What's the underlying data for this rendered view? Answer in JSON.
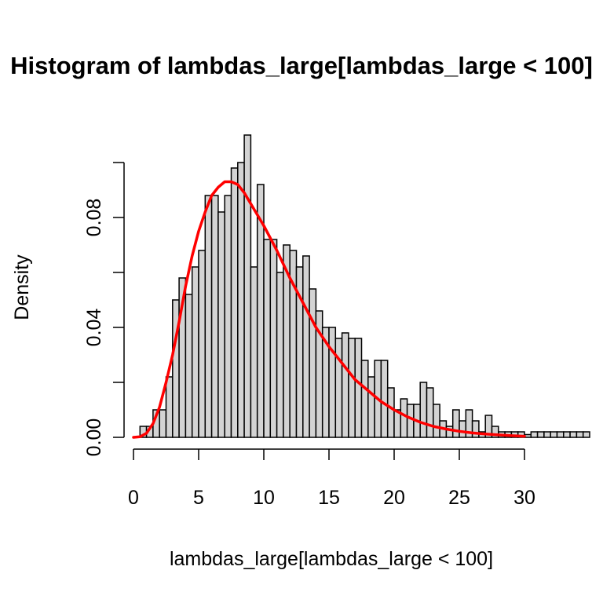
{
  "chart_data": {
    "type": "bar",
    "title": "Histogram of lambdas_large[lambdas_large < 100]",
    "xlabel": "lambdas_large[lambdas_large < 100]",
    "ylabel": "Density",
    "xlim": [
      0,
      30
    ],
    "ylim": [
      0,
      0.1
    ],
    "x_ticks": [
      0,
      5,
      10,
      15,
      20,
      25,
      30
    ],
    "x_tick_labels": [
      "0",
      "5",
      "10",
      "15",
      "20",
      "25",
      "30"
    ],
    "y_ticks": [
      0,
      0.02,
      0.04,
      0.06,
      0.08,
      0.1
    ],
    "y_tick_labels": [
      "0.00",
      "",
      "0.04",
      "",
      "0.08",
      ""
    ],
    "bin_width": 0.5,
    "bin_start": 0,
    "bar_color": "#d3d3d3",
    "bar_border_color": "#000000",
    "values": [
      0,
      0.004,
      0.004,
      0.01,
      0.01,
      0.022,
      0.05,
      0.058,
      0.052,
      0.062,
      0.068,
      0.088,
      0.088,
      0.082,
      0.088,
      0.098,
      0.1,
      0.11,
      0.062,
      0.092,
      0.072,
      0.072,
      0.06,
      0.07,
      0.068,
      0.062,
      0.066,
      0.054,
      0.046,
      0.04,
      0.04,
      0.036,
      0.038,
      0.036,
      0.036,
      0.028,
      0.022,
      0.028,
      0.028,
      0.018,
      0.01,
      0.014,
      0.012,
      0.012,
      0.02,
      0.018,
      0.012,
      0.006,
      0.004,
      0.01,
      0.006,
      0.01,
      0.006,
      0.002,
      0.008,
      0.004,
      0.002,
      0.002,
      0.002,
      0.002,
      0.001,
      0.002,
      0.002,
      0.002,
      0.002,
      0.002,
      0.002,
      0.002,
      0.002,
      0.002
    ],
    "curve": {
      "color": "#ff0000",
      "x": [
        0,
        0.5,
        1,
        1.5,
        2,
        2.5,
        3,
        3.5,
        4,
        4.5,
        5,
        5.5,
        6,
        6.5,
        7,
        7.5,
        8,
        8.5,
        9,
        9.5,
        10,
        11,
        12,
        13,
        14,
        15,
        16,
        17,
        18,
        19,
        20,
        21,
        22,
        23,
        24,
        25,
        26,
        27,
        28,
        29,
        30
      ],
      "y": [
        0,
        0.0002,
        0.0015,
        0.005,
        0.011,
        0.02,
        0.03,
        0.042,
        0.055,
        0.066,
        0.075,
        0.082,
        0.088,
        0.091,
        0.093,
        0.093,
        0.092,
        0.089,
        0.085,
        0.081,
        0.077,
        0.068,
        0.058,
        0.049,
        0.04,
        0.033,
        0.027,
        0.021,
        0.017,
        0.013,
        0.01,
        0.0075,
        0.0055,
        0.004,
        0.003,
        0.0022,
        0.0016,
        0.0012,
        0.0009,
        0.0006,
        0.0004
      ]
    }
  }
}
